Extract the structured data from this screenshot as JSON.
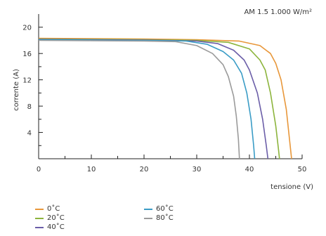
{
  "chart_data": {
    "type": "line",
    "title": "",
    "annotation": "AM 1.5   1.000 W/m²",
    "xlabel": "tensione (V)",
    "ylabel": "corrente (A)",
    "xlim": [
      0,
      50
    ],
    "ylim": [
      0,
      22
    ],
    "x_ticks": [
      0,
      10,
      20,
      30,
      40,
      50
    ],
    "x_minor_ticks": [
      5,
      15,
      25,
      35,
      45
    ],
    "y_ticks": [
      4,
      8,
      12,
      16,
      20
    ],
    "y_minor_ticks": [
      2,
      6,
      10,
      14,
      18
    ],
    "grid": false,
    "legend_position": "bottom-left",
    "series": [
      {
        "name": "0˚C",
        "color": "#e8973a",
        "points": [
          [
            0,
            18.3
          ],
          [
            10,
            18.25
          ],
          [
            20,
            18.2
          ],
          [
            30,
            18.1
          ],
          [
            38,
            17.9
          ],
          [
            42,
            17.2
          ],
          [
            44,
            16.0
          ],
          [
            45,
            14.5
          ],
          [
            46,
            12.0
          ],
          [
            47,
            7.5
          ],
          [
            47.6,
            3.0
          ],
          [
            48,
            0
          ]
        ]
      },
      {
        "name": "20˚C",
        "color": "#8cb43c",
        "points": [
          [
            0,
            18.2
          ],
          [
            10,
            18.15
          ],
          [
            20,
            18.1
          ],
          [
            30,
            18.0
          ],
          [
            36,
            17.7
          ],
          [
            40,
            16.7
          ],
          [
            42,
            15.0
          ],
          [
            43,
            13.5
          ],
          [
            44,
            10.0
          ],
          [
            45,
            5.0
          ],
          [
            45.5,
            1.5
          ],
          [
            45.7,
            0
          ]
        ]
      },
      {
        "name": "40˚C",
        "color": "#6b5ea8",
        "points": [
          [
            0,
            18.15
          ],
          [
            10,
            18.1
          ],
          [
            20,
            18.05
          ],
          [
            30,
            17.9
          ],
          [
            34,
            17.5
          ],
          [
            37,
            16.5
          ],
          [
            39,
            15.0
          ],
          [
            40,
            13.5
          ],
          [
            41.5,
            10.0
          ],
          [
            42.5,
            6.0
          ],
          [
            43.2,
            2.0
          ],
          [
            43.5,
            0
          ]
        ]
      },
      {
        "name": "60˚C",
        "color": "#3a9cc6",
        "points": [
          [
            0,
            18.1
          ],
          [
            10,
            18.05
          ],
          [
            20,
            18.0
          ],
          [
            28,
            17.9
          ],
          [
            32,
            17.4
          ],
          [
            35,
            16.3
          ],
          [
            37,
            15.0
          ],
          [
            38.5,
            13.0
          ],
          [
            39.5,
            10.0
          ],
          [
            40.3,
            6.0
          ],
          [
            40.8,
            2.0
          ],
          [
            41,
            0
          ]
        ]
      },
      {
        "name": "80˚C",
        "color": "#9b9b9b",
        "points": [
          [
            0,
            18.0
          ],
          [
            10,
            17.95
          ],
          [
            20,
            17.9
          ],
          [
            26,
            17.8
          ],
          [
            30,
            17.2
          ],
          [
            33,
            16.0
          ],
          [
            35,
            14.3
          ],
          [
            36,
            12.5
          ],
          [
            37,
            9.5
          ],
          [
            37.5,
            6.5
          ],
          [
            37.9,
            3.0
          ],
          [
            38.1,
            0
          ]
        ]
      }
    ]
  }
}
